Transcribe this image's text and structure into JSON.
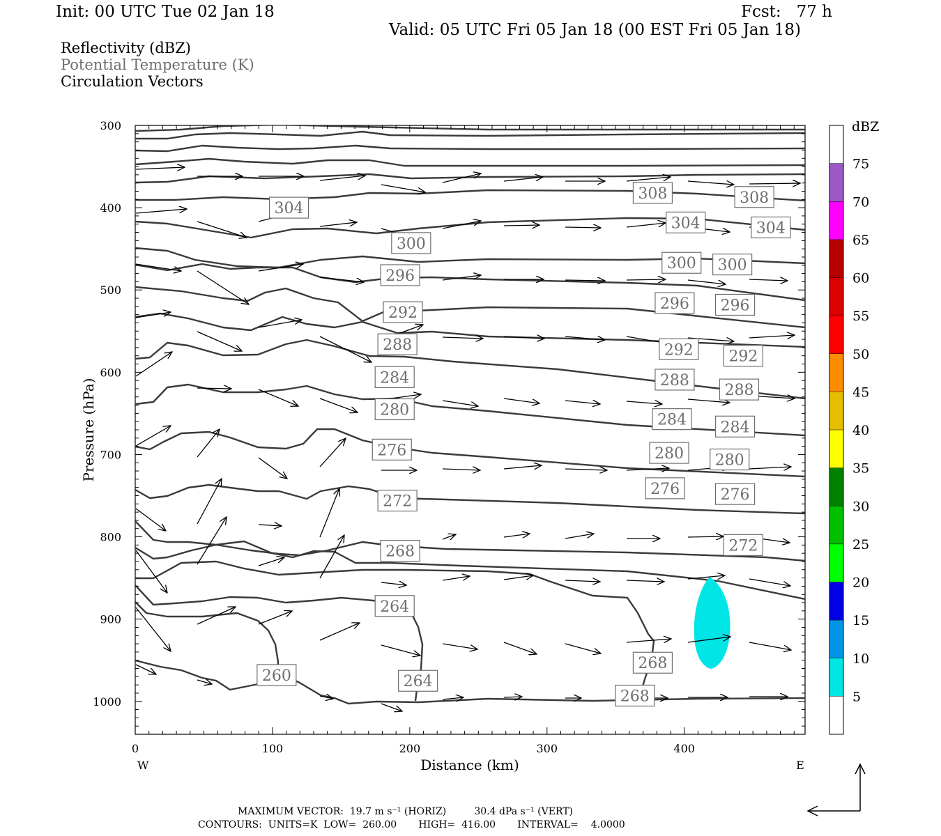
{
  "header": {
    "init": "Init: 00 UTC Tue 02 Jan 18",
    "fcst": "Fcst:   77 h",
    "valid": "Valid: 05 UTC Fri 05 Jan 18 (00 EST Fri 05 Jan 18)"
  },
  "legend": {
    "line1": "Reflectivity (dBZ)",
    "line2": "Potential Temperature (K)",
    "line3": "Circulation Vectors"
  },
  "footer": {
    "max_vector": "MAXIMUM VECTOR:  19.7 m s⁻¹ (HORIZ)         30.4 dPa s⁻¹ (VERT)",
    "contours": "CONTOURS:  UNITS=K  LOW=  260.00       HIGH=  416.00       INTERVAL=    4.0000"
  },
  "chart_data": {
    "type": "cross-section contour",
    "xlabel": "Distance (km)",
    "ylabel": "Pressure (hPa)",
    "xlim": [
      0,
      488
    ],
    "ylim": [
      1040,
      300
    ],
    "x_ticks": [
      0,
      100,
      200,
      300,
      400
    ],
    "y_ticks": [
      300,
      400,
      500,
      600,
      700,
      800,
      900,
      1000
    ],
    "x_end_labels": {
      "left": "W",
      "right": "E"
    },
    "colorbar": {
      "title": "dBZ",
      "levels": [
        5,
        10,
        15,
        20,
        25,
        30,
        35,
        40,
        45,
        50,
        55,
        60,
        65,
        70,
        75
      ],
      "colors": [
        "#00e5e5",
        "#0096e6",
        "#0000e6",
        "#00ff00",
        "#00c000",
        "#008000",
        "#ffff00",
        "#e6be00",
        "#ff8c00",
        "#ff0000",
        "#dc0000",
        "#b40000",
        "#ff00ff",
        "#9b59c8",
        "#ffffff"
      ]
    },
    "reflectivity_cells": [
      {
        "x_km": 414,
        "p_center": 910,
        "x_halfwidth_km": 12,
        "p_halfheight": 48,
        "dbz_range": [
          5,
          10
        ]
      }
    ],
    "contour_labels": [
      {
        "value": "304",
        "x": 112,
        "p": 400
      },
      {
        "value": "300",
        "x": 201,
        "p": 443
      },
      {
        "value": "296",
        "x": 193,
        "p": 482
      },
      {
        "value": "292",
        "x": 195,
        "p": 527
      },
      {
        "value": "288",
        "x": 191,
        "p": 566
      },
      {
        "value": "284",
        "x": 189,
        "p": 606
      },
      {
        "value": "280",
        "x": 189,
        "p": 645
      },
      {
        "value": "276",
        "x": 187,
        "p": 694
      },
      {
        "value": "272",
        "x": 191,
        "p": 756
      },
      {
        "value": "268",
        "x": 193,
        "p": 817
      },
      {
        "value": "264",
        "x": 189,
        "p": 884
      },
      {
        "value": "260",
        "x": 103,
        "p": 968
      },
      {
        "value": "264",
        "x": 206,
        "p": 975
      },
      {
        "value": "268",
        "x": 377,
        "p": 953
      },
      {
        "value": "268",
        "x": 364,
        "p": 993
      },
      {
        "value": "308",
        "x": 377,
        "p": 382
      },
      {
        "value": "308",
        "x": 451,
        "p": 387
      },
      {
        "value": "304",
        "x": 401,
        "p": 418
      },
      {
        "value": "304",
        "x": 463,
        "p": 424
      },
      {
        "value": "300",
        "x": 398,
        "p": 467
      },
      {
        "value": "300",
        "x": 435,
        "p": 469
      },
      {
        "value": "296",
        "x": 393,
        "p": 516
      },
      {
        "value": "296",
        "x": 437,
        "p": 518
      },
      {
        "value": "292",
        "x": 396,
        "p": 572
      },
      {
        "value": "292",
        "x": 443,
        "p": 580
      },
      {
        "value": "288",
        "x": 393,
        "p": 609
      },
      {
        "value": "288",
        "x": 440,
        "p": 621
      },
      {
        "value": "284",
        "x": 391,
        "p": 657
      },
      {
        "value": "284",
        "x": 437,
        "p": 666
      },
      {
        "value": "280",
        "x": 389,
        "p": 698
      },
      {
        "value": "280",
        "x": 433,
        "p": 706
      },
      {
        "value": "276",
        "x": 386,
        "p": 741
      },
      {
        "value": "276",
        "x": 437,
        "p": 748
      },
      {
        "value": "272",
        "x": 443,
        "p": 810
      }
    ]
  }
}
